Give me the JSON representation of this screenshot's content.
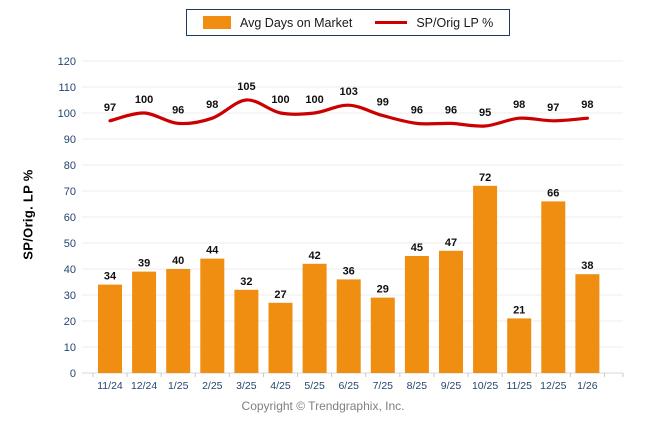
{
  "legend": {
    "bar_label": "Avg Days on Market",
    "line_label": "SP/Orig LP %"
  },
  "footer": "Copyright © Trendgraphix, Inc.",
  "colors": {
    "bar": "#EF8E11",
    "line": "#CC0000",
    "grid": "#EDEDED",
    "baseline": "#D8D8D8",
    "tick": "#C9C9C9",
    "axis_text": "#25456F",
    "data_label": "#101010",
    "axis_title": "#000000",
    "legend_border": "#1F3864",
    "footer_text": "#808080"
  },
  "chart_data": {
    "type": "bar",
    "categories": [
      "11/24",
      "12/24",
      "1/25",
      "2/25",
      "3/25",
      "4/25",
      "5/25",
      "6/25",
      "7/25",
      "8/25",
      "9/25",
      "10/25",
      "11/25",
      "12/25",
      "1/26"
    ],
    "series": [
      {
        "name": "Avg Days on Market",
        "type": "bar",
        "values": [
          34,
          39,
          40,
          44,
          32,
          27,
          42,
          36,
          29,
          45,
          47,
          72,
          21,
          66,
          38
        ]
      },
      {
        "name": "SP/Orig LP %",
        "type": "line",
        "values": [
          97,
          100,
          96,
          98,
          105,
          100,
          100,
          103,
          99,
          96,
          96,
          95,
          98,
          97,
          98
        ]
      }
    ],
    "title": "",
    "xlabel": "",
    "ylabel": "SP/Orig. LP %",
    "ylim": [
      0,
      120
    ],
    "ytick_step": 10,
    "grid": true,
    "legend_position": "top",
    "data_labels": true
  }
}
